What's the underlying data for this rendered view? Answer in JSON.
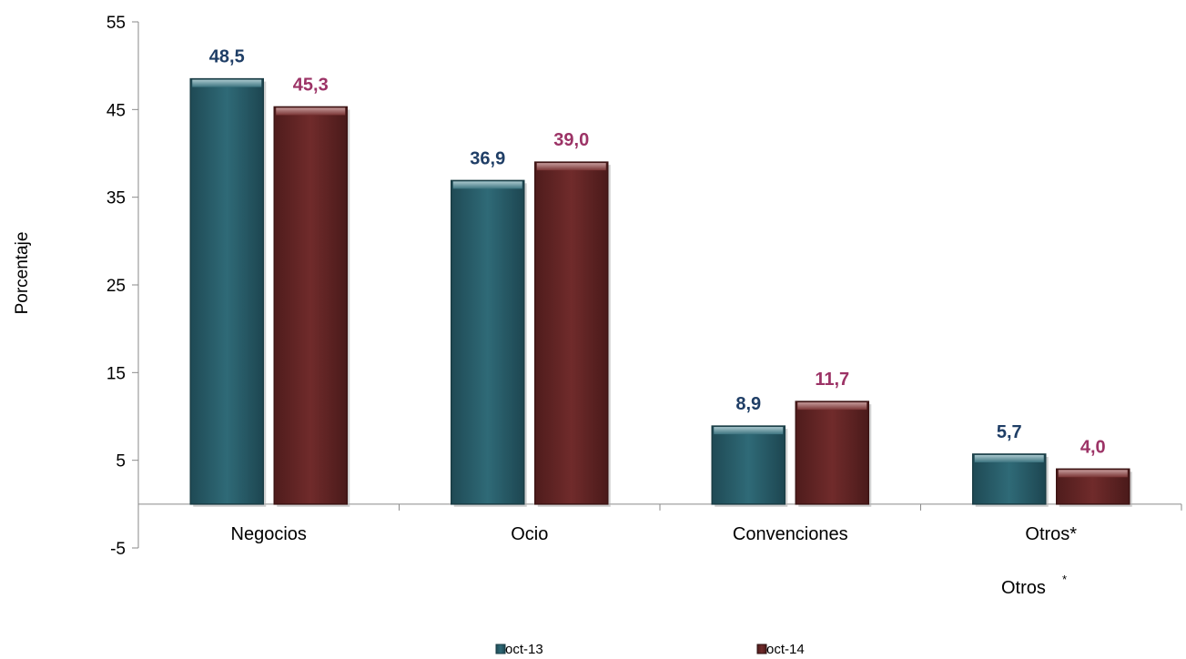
{
  "chart_data": {
    "type": "bar",
    "categories": [
      "Negocios",
      "Ocio",
      "Convenciones",
      "Otros*"
    ],
    "series": [
      {
        "name": "oct-13",
        "values": [
          48.5,
          36.9,
          8.9,
          5.7
        ],
        "labels": [
          "48,5",
          "36,9",
          "8,9",
          "5,7"
        ],
        "color": "#2e6470",
        "label_color": "#1f3e66"
      },
      {
        "name": "oct-14",
        "values": [
          45.3,
          39.0,
          11.7,
          4.0
        ],
        "labels": [
          "45,3",
          "39,0",
          "11,7",
          "4,0"
        ],
        "color": "#6b2a2a",
        "label_color": "#9c3366"
      }
    ],
    "ylabel": "Porcentaje",
    "ylim": [
      -5,
      55
    ],
    "yticks": [
      55,
      45,
      35,
      25,
      15,
      5,
      -5
    ],
    "grid": false,
    "legend_position": "bottom",
    "footnote": {
      "text": "Otros",
      "superscript": "*"
    }
  }
}
